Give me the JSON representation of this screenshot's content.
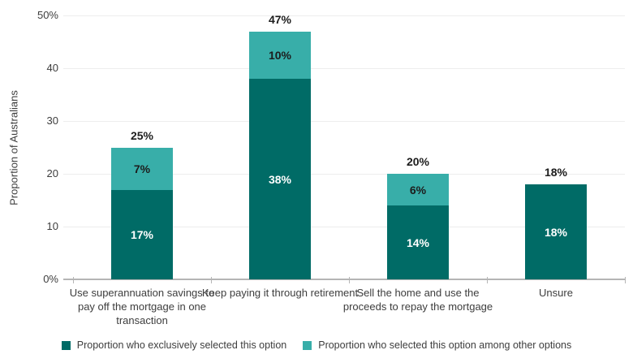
{
  "chart_data": {
    "type": "bar",
    "stacked": true,
    "title": "",
    "ylabel": "Proportion of Australians",
    "xlabel": "",
    "ylim": [
      0,
      50
    ],
    "ytick_values": [
      0,
      10,
      20,
      30,
      40,
      50
    ],
    "ytick_labels": [
      "0%",
      "10",
      "20",
      "30",
      "40",
      "50%"
    ],
    "grid": true,
    "legend_position": "bottom",
    "categories": [
      "Use superannuation savings to pay off the mortgage in one transaction",
      "Keep paying it through retirement",
      "Sell the home and use the proceeds to repay the mortgage",
      "Unsure"
    ],
    "series": [
      {
        "name": "Proportion who exclusively selected this option",
        "color": "#006B66",
        "label_color": "#ffffff",
        "values": [
          17,
          38,
          14,
          18
        ],
        "labels": [
          "17%",
          "38%",
          "14%",
          "18%"
        ]
      },
      {
        "name": "Proportion who selected this option among other options",
        "color": "#38AEA9",
        "label_color": "#1c1c1c",
        "values": [
          7,
          10,
          6,
          0
        ],
        "labels": [
          "7%",
          "10%",
          "6%",
          ""
        ]
      }
    ],
    "totals": {
      "values": [
        25,
        47,
        20,
        18
      ],
      "labels": [
        "25%",
        "47%",
        "20%",
        "18%"
      ]
    }
  }
}
